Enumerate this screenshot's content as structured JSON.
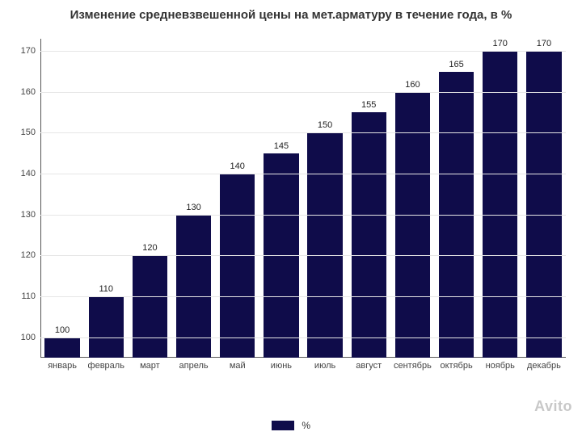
{
  "chart": {
    "type": "bar",
    "title": "Изменение средневзвешенной цены на мет.арматуру в течение года, в %",
    "title_fontsize": 15,
    "title_color": "#333333",
    "categories": [
      "январь",
      "февраль",
      "март",
      "апрель",
      "май",
      "июнь",
      "июль",
      "август",
      "сентябрь",
      "октябрь",
      "ноябрь",
      "декабрь"
    ],
    "values": [
      100,
      110,
      120,
      130,
      140,
      145,
      150,
      155,
      160,
      165,
      170,
      170
    ],
    "bar_color": "#0f0c4a",
    "value_label_color": "#222222",
    "value_label_fontsize": 11,
    "x_label_fontsize": 11,
    "x_label_color": "#444444",
    "y_label_fontsize": 11,
    "y_label_color": "#444444",
    "y_min": 95,
    "y_max": 173,
    "y_ticks": [
      100,
      110,
      120,
      130,
      140,
      150,
      160,
      170
    ],
    "grid_color": "#e6e6e6",
    "axis_color": "#555555",
    "background_color": "#ffffff",
    "bar_width_ratio": 0.8,
    "legend": {
      "label": "%",
      "swatch_color": "#0f0c4a",
      "fontsize": 12
    },
    "watermark": {
      "text": "Avito",
      "color": "#c8c8c8",
      "fontsize": 18
    }
  }
}
